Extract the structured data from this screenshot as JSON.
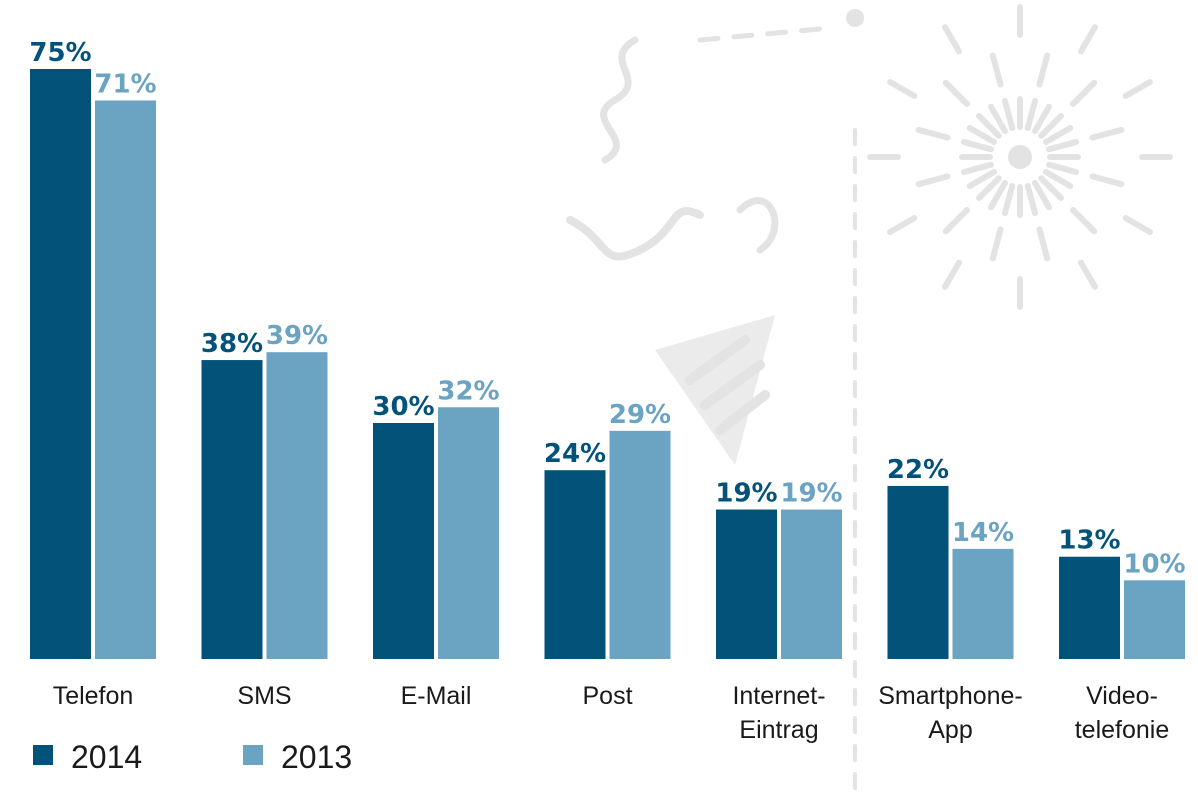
{
  "chart_data": {
    "type": "bar",
    "categories": [
      [
        "Telefon"
      ],
      [
        "SMS"
      ],
      [
        "E-Mail"
      ],
      [
        "Post"
      ],
      [
        "Internet-",
        "Eintrag"
      ],
      [
        "Smartphone-",
        "App"
      ],
      [
        "Video-",
        "telefonie"
      ]
    ],
    "series": [
      {
        "name": "2014",
        "color": "#02527a",
        "values": [
          75,
          38,
          30,
          24,
          19,
          22,
          13
        ],
        "labels": [
          "75%",
          "38%",
          "30%",
          "24%",
          "19%",
          "22%",
          "13%"
        ]
      },
      {
        "name": "2013",
        "color": "#6ba3c3",
        "values": [
          71,
          39,
          32,
          29,
          19,
          14,
          10
        ],
        "labels": [
          "71%",
          "39%",
          "32%",
          "29%",
          "19%",
          "14%",
          "10%"
        ]
      }
    ],
    "ylim": [
      0,
      75
    ],
    "grid": false,
    "legend_position": "bottom-left"
  }
}
